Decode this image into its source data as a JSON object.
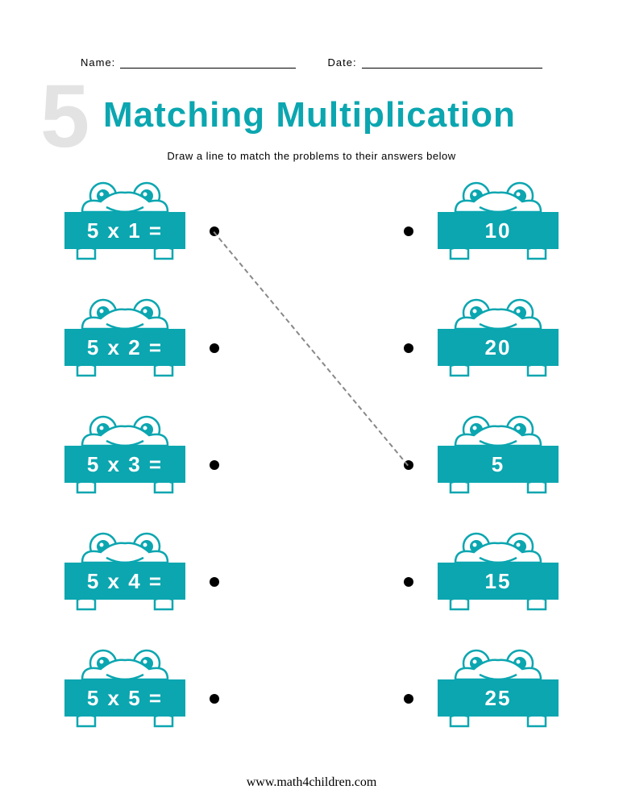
{
  "header": {
    "name_label": "Name:",
    "date_label": "Date:"
  },
  "big_number": "5",
  "title": "Matching Multiplication",
  "title_color": "#0ba6b0",
  "instruction": "Draw a line to match the problems to their answers below",
  "sign_color": "#0ba6b0",
  "frog_stroke": "#0ba6b0",
  "frog_eye_fill": "#0ba6b0",
  "dot_color": "#000000",
  "row_spacing": 145,
  "problems": [
    {
      "expr": "5 x 1 ="
    },
    {
      "expr": "5 x 2 ="
    },
    {
      "expr": "5 x 3 ="
    },
    {
      "expr": "5 x 4 ="
    },
    {
      "expr": "5 x 5 ="
    }
  ],
  "answers": [
    {
      "val": "10"
    },
    {
      "val": "20"
    },
    {
      "val": "5"
    },
    {
      "val": "15"
    },
    {
      "val": "25"
    }
  ],
  "example_line": {
    "from_row": 0,
    "to_row": 2
  },
  "footer": "www.math4children.com"
}
